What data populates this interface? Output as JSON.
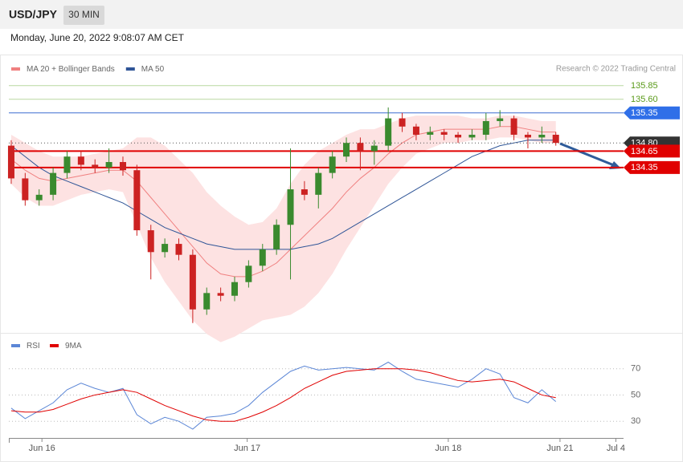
{
  "header": {
    "symbol": "USD/JPY",
    "interval": "30 MIN",
    "timestamp": "Monday, June 20, 2022 9:08:07 AM CET"
  },
  "chart_data": [
    {
      "type": "candlestick",
      "legend": [
        {
          "name": "MA 20 + Bollinger Bands",
          "color": "#f08080"
        },
        {
          "name": "MA 50",
          "color": "#2f5597"
        }
      ],
      "credit": "Research © 2022 Trading Central",
      "xlim": [
        -0.17,
        43.85
      ],
      "xticks": [
        {
          "value": 2.2,
          "label": "Jun 16"
        },
        {
          "value": 16.9,
          "label": "Jun 17"
        },
        {
          "value": 31.3,
          "label": "Jun 18"
        },
        {
          "value": 39.3,
          "label": "Jun 21"
        },
        {
          "value": 43.3,
          "label": "Jul 4"
        }
      ],
      "ylim": [
        131.32,
        136.39
      ],
      "up_color": "#3a8a2e",
      "down_color": "#cc2222",
      "band_color": "#fde2e2",
      "candles": [
        [
          134.75,
          134.85,
          134.05,
          134.15
        ],
        [
          134.15,
          134.25,
          133.65,
          133.75
        ],
        [
          133.75,
          133.95,
          133.65,
          133.85
        ],
        [
          133.85,
          134.35,
          133.75,
          134.25
        ],
        [
          134.25,
          134.65,
          134.15,
          134.55
        ],
        [
          134.55,
          134.65,
          134.3,
          134.4
        ],
        [
          134.4,
          134.5,
          134.25,
          134.35
        ],
        [
          134.35,
          134.7,
          134.25,
          134.45
        ],
        [
          134.45,
          134.55,
          134.2,
          134.3
        ],
        [
          134.3,
          134.4,
          133.1,
          133.2
        ],
        [
          133.2,
          133.3,
          132.3,
          132.8
        ],
        [
          132.8,
          133.05,
          132.7,
          132.95
        ],
        [
          132.95,
          133.05,
          132.65,
          132.75
        ],
        [
          132.75,
          132.85,
          131.5,
          131.75
        ],
        [
          131.75,
          132.15,
          131.65,
          132.05
        ],
        [
          132.05,
          132.15,
          131.9,
          132.0
        ],
        [
          132.0,
          132.35,
          131.9,
          132.25
        ],
        [
          132.25,
          132.65,
          132.15,
          132.55
        ],
        [
          132.55,
          132.95,
          132.45,
          132.85
        ],
        [
          132.85,
          133.4,
          132.75,
          133.3
        ],
        [
          133.3,
          134.7,
          132.3,
          133.95
        ],
        [
          133.95,
          134.1,
          133.75,
          133.85
        ],
        [
          133.85,
          134.35,
          133.6,
          134.25
        ],
        [
          134.25,
          134.65,
          134.15,
          134.55
        ],
        [
          134.55,
          134.9,
          134.45,
          134.8
        ],
        [
          134.8,
          134.9,
          134.3,
          134.65
        ],
        [
          134.65,
          134.85,
          134.4,
          134.75
        ],
        [
          134.75,
          135.45,
          134.65,
          135.25
        ],
        [
          135.25,
          135.35,
          135.0,
          135.1
        ],
        [
          135.1,
          135.15,
          134.85,
          134.95
        ],
        [
          134.95,
          135.1,
          134.85,
          135.0
        ],
        [
          135.0,
          135.05,
          134.85,
          134.95
        ],
        [
          134.95,
          135.0,
          134.8,
          134.9
        ],
        [
          134.9,
          135.05,
          134.85,
          134.95
        ],
        [
          134.95,
          135.35,
          134.85,
          135.2
        ],
        [
          135.2,
          135.4,
          135.1,
          135.25
        ],
        [
          135.25,
          135.3,
          134.85,
          134.95
        ],
        [
          134.95,
          135.0,
          134.7,
          134.9
        ],
        [
          134.9,
          135.1,
          134.8,
          134.95
        ],
        [
          134.95,
          135.0,
          134.75,
          134.8
        ]
      ],
      "ma20": [
        134.5,
        134.3,
        134.15,
        134.1,
        134.15,
        134.2,
        134.25,
        134.3,
        134.3,
        134.1,
        133.8,
        133.5,
        133.2,
        132.9,
        132.6,
        132.4,
        132.35,
        132.35,
        132.45,
        132.6,
        132.85,
        133.1,
        133.35,
        133.6,
        133.9,
        134.15,
        134.35,
        134.6,
        134.8,
        134.95,
        135.0,
        135.05,
        135.05,
        135.05,
        135.05,
        135.1,
        135.1,
        135.05,
        135.0,
        135.0
      ],
      "bb_upper": [
        134.95,
        134.8,
        134.65,
        134.55,
        134.55,
        134.55,
        134.6,
        134.65,
        134.7,
        134.9,
        134.9,
        134.75,
        134.5,
        134.25,
        133.9,
        133.65,
        133.45,
        133.3,
        133.35,
        133.6,
        134.05,
        134.4,
        134.65,
        134.8,
        134.95,
        135.05,
        135.05,
        135.15,
        135.25,
        135.3,
        135.3,
        135.3,
        135.3,
        135.25,
        135.25,
        135.3,
        135.3,
        135.25,
        135.2,
        135.2
      ],
      "bb_lower": [
        134.05,
        133.8,
        133.65,
        133.65,
        133.75,
        133.85,
        133.9,
        133.95,
        133.9,
        133.3,
        132.7,
        132.25,
        131.9,
        131.55,
        131.3,
        131.15,
        131.25,
        131.4,
        131.55,
        131.6,
        131.65,
        131.8,
        132.05,
        132.4,
        132.85,
        133.25,
        133.65,
        134.05,
        134.35,
        134.6,
        134.7,
        134.8,
        134.8,
        134.85,
        134.85,
        134.9,
        134.9,
        134.85,
        134.8,
        134.8
      ],
      "ma50": [
        134.75,
        134.55,
        134.35,
        134.2,
        134.1,
        134.0,
        133.9,
        133.8,
        133.7,
        133.55,
        133.4,
        133.25,
        133.15,
        133.05,
        132.95,
        132.9,
        132.85,
        132.85,
        132.85,
        132.85,
        132.85,
        132.9,
        132.95,
        133.05,
        133.2,
        133.35,
        133.5,
        133.65,
        133.8,
        133.95,
        134.1,
        134.25,
        134.4,
        134.55,
        134.65,
        134.75,
        134.8,
        134.85,
        134.85,
        134.85
      ],
      "levels": [
        {
          "value": 135.85,
          "color": "#5a9a1a",
          "line_color": "#b9d8a0"
        },
        {
          "value": 135.6,
          "label": "135.60",
          "color": "#5a9a1a",
          "line_color": "#b9d8a0"
        },
        {
          "value": 135.35,
          "color": "#2f6fe8",
          "line_color": "#3d6fd1",
          "boxed": true
        },
        {
          "value": 134.8,
          "label": "134.80",
          "color": "#333333",
          "line_color": "#555555",
          "boxed": true,
          "dotted": true
        },
        {
          "value": 134.65,
          "color": "#e00000",
          "line_color": "#e00000",
          "boxed": true,
          "thick": true
        },
        {
          "value": 134.35,
          "color": "#e00000",
          "line_color": "#e00000",
          "boxed": true,
          "thick": true
        }
      ]
    },
    {
      "type": "line",
      "ylim": [
        17.9,
        91.2
      ],
      "yticks": [
        30,
        50,
        70
      ],
      "grid": true,
      "series": [
        {
          "name": "RSI",
          "color": "#5b86d6",
          "values": [
            40,
            32,
            38,
            44,
            54,
            59,
            55,
            52,
            55,
            35,
            28,
            33,
            30,
            24,
            33,
            34,
            36,
            42,
            52,
            60,
            68,
            72,
            69,
            70,
            71,
            70,
            69,
            75,
            68,
            62,
            60,
            58,
            56,
            62,
            70,
            66,
            48,
            44,
            54,
            45
          ]
        },
        {
          "name": "9MA",
          "color": "#e00000",
          "values": [
            38,
            37,
            37,
            39,
            43,
            47,
            50,
            52,
            54,
            52,
            47,
            42,
            38,
            34,
            31,
            30,
            30,
            33,
            37,
            42,
            48,
            55,
            60,
            65,
            68,
            69,
            70,
            70,
            70,
            69,
            67,
            64,
            61,
            60,
            61,
            62,
            60,
            55,
            50,
            48
          ]
        }
      ]
    }
  ]
}
